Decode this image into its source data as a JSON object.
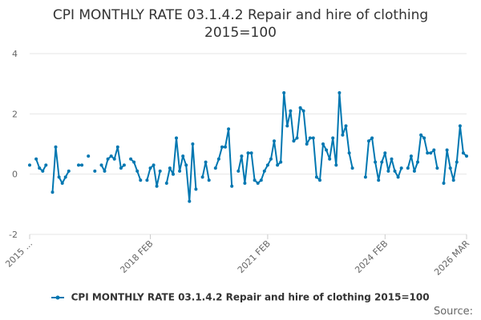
{
  "title": {
    "line1": "CPI MONTHLY RATE 03.1.4.2 Repair and hire of clothing",
    "line2": "2015=100"
  },
  "legend": {
    "label": "CPI MONTHLY RATE 03.1.4.2 Repair and hire of clothing 2015=100"
  },
  "source": "Source:",
  "colors": {
    "series": "#0077b1",
    "grid": "#e6e6e6",
    "axis_text": "#666666",
    "title": "#333333"
  },
  "chart_data": {
    "type": "line",
    "title": "CPI MONTHLY RATE 03.1.4.2 Repair and hire of clothing 2015=100",
    "xlabel": "",
    "ylabel": "",
    "ylim": [
      -2,
      4
    ],
    "yticks": [
      -2,
      0,
      2,
      4
    ],
    "x_tick_labels": [
      "2015 ...",
      "2018 FEB",
      "2021 FEB",
      "2024 FEB",
      "2026 MAR"
    ],
    "grid": true,
    "legend_position": "bottom",
    "series": [
      {
        "name": "CPI MONTHLY RATE 03.1.4.2 Repair and hire of clothing 2015=100",
        "values": [
          0.3,
          null,
          0.5,
          0.2,
          0.1,
          0.3,
          null,
          -0.6,
          0.9,
          -0.1,
          -0.3,
          -0.1,
          0.1,
          null,
          null,
          0.3,
          0.3,
          null,
          0.6,
          null,
          0.1,
          null,
          0.3,
          0.1,
          0.5,
          0.6,
          0.5,
          0.9,
          0.2,
          0.3,
          null,
          0.5,
          0.4,
          0.1,
          -0.2,
          null,
          -0.2,
          0.2,
          0.3,
          -0.4,
          0.1,
          null,
          -0.3,
          0.2,
          0.0,
          1.2,
          0.1,
          0.6,
          0.3,
          -0.9,
          1.0,
          -0.5,
          null,
          -0.1,
          0.4,
          -0.2,
          null,
          0.2,
          0.5,
          0.9,
          0.9,
          1.5,
          -0.4,
          null,
          0.1,
          0.6,
          -0.3,
          0.7,
          0.7,
          -0.2,
          -0.3,
          -0.2,
          0.1,
          0.3,
          0.5,
          1.1,
          0.3,
          0.4,
          2.7,
          1.6,
          2.1,
          1.1,
          1.2,
          2.2,
          2.1,
          1.0,
          1.2,
          1.2,
          -0.1,
          -0.2,
          1.0,
          0.8,
          0.5,
          1.2,
          0.3,
          2.7,
          1.3,
          1.6,
          0.7,
          0.2,
          null,
          null,
          null,
          -0.1,
          1.1,
          1.2,
          0.4,
          -0.2,
          0.4,
          0.7,
          0.1,
          0.5,
          0.1,
          -0.1,
          0.2,
          null,
          0.2,
          0.6,
          0.1,
          0.4,
          1.3,
          1.2,
          0.7,
          0.7,
          0.8,
          0.2,
          null,
          -0.3,
          0.8,
          0.2,
          -0.2,
          0.4,
          1.6,
          0.7,
          0.6
        ]
      }
    ]
  }
}
